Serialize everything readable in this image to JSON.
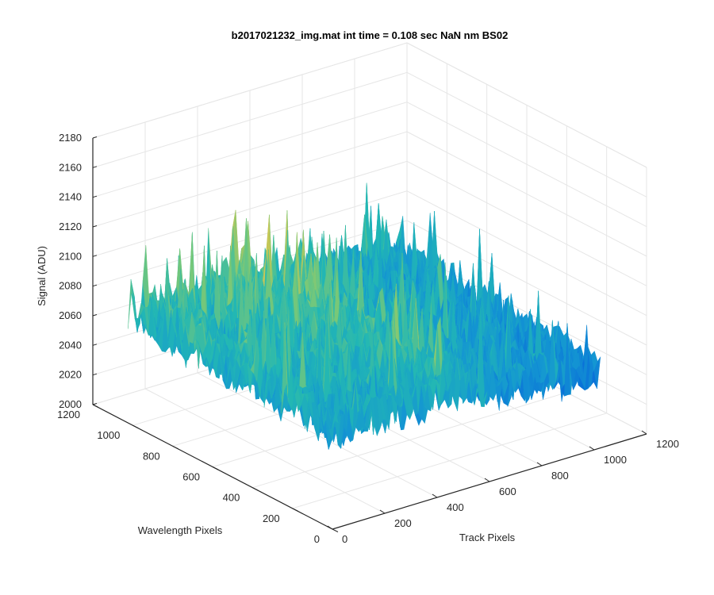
{
  "chart_data": {
    "type": "surface",
    "title": "b2017021232_img.mat int time = 0.108 sec  NaN nm BS02",
    "xlabel": "Track Pixels",
    "ylabel": "Wavelength Pixels",
    "zlabel": "Signal (ADU)",
    "xlim": [
      0,
      1200
    ],
    "ylim": [
      0,
      1200
    ],
    "zlim": [
      2000,
      2180
    ],
    "xticks": [
      0,
      200,
      400,
      600,
      800,
      1000,
      1200
    ],
    "yticks": [
      0,
      200,
      400,
      600,
      800,
      1000,
      1200
    ],
    "zticks": [
      2000,
      2020,
      2040,
      2060,
      2080,
      2100,
      2120,
      2140,
      2160,
      2180
    ],
    "grid": true,
    "colormap": "parula",
    "surface_extent": {
      "x": [
        0,
        1024
      ],
      "y": [
        0,
        1024
      ]
    },
    "surface_summary": {
      "typical_signal_range": [
        2040,
        2110
      ],
      "peak_signal": 2150,
      "min_signal": 2000
    }
  },
  "colors": {
    "axis": "#262626",
    "grid": "#e6e6e6",
    "colormap_low": "#0a72d8",
    "colormap_mid": "#22b7b4",
    "colormap_high": "#f1c644"
  }
}
